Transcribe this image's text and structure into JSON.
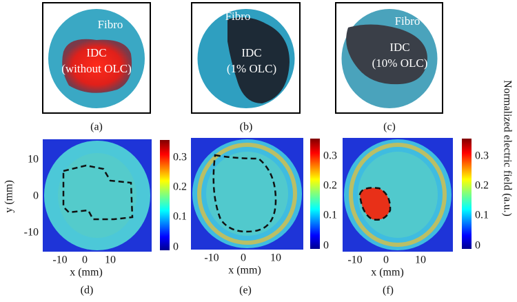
{
  "photos": [
    {
      "caption": "(a)",
      "labels": [
        "Fibro",
        "IDC",
        "(without OLC)"
      ]
    },
    {
      "caption": "(b)",
      "labels": [
        "Fibro",
        "IDC",
        "(1% OLC)"
      ]
    },
    {
      "caption": "(c)",
      "labels": [
        "Fibro",
        "IDC",
        "(10% OLC)"
      ]
    }
  ],
  "maps": [
    {
      "caption": "(d)",
      "x_label": "x (mm)",
      "y_label": "y (mm)",
      "xticks": [
        "-10",
        "0",
        "10"
      ],
      "yticks": [
        "10",
        "0",
        "-10"
      ],
      "colorbar_ticks": [
        "0.3",
        "0.2",
        "0.1",
        "0"
      ]
    },
    {
      "caption": "(e)",
      "x_label": "x (mm)",
      "xticks": [
        "-10",
        "0",
        "10"
      ],
      "colorbar_ticks": [
        "0.3",
        "0.2",
        "0.1",
        "0"
      ]
    },
    {
      "caption": "(f)",
      "x_label": "x (mm)",
      "xticks": [
        "-10",
        "0",
        "10"
      ],
      "colorbar_ticks": [
        "0.3",
        "0.2",
        "0.1",
        "0"
      ]
    }
  ],
  "colorbar_label": "Normalized electric field (a.u.)"
}
